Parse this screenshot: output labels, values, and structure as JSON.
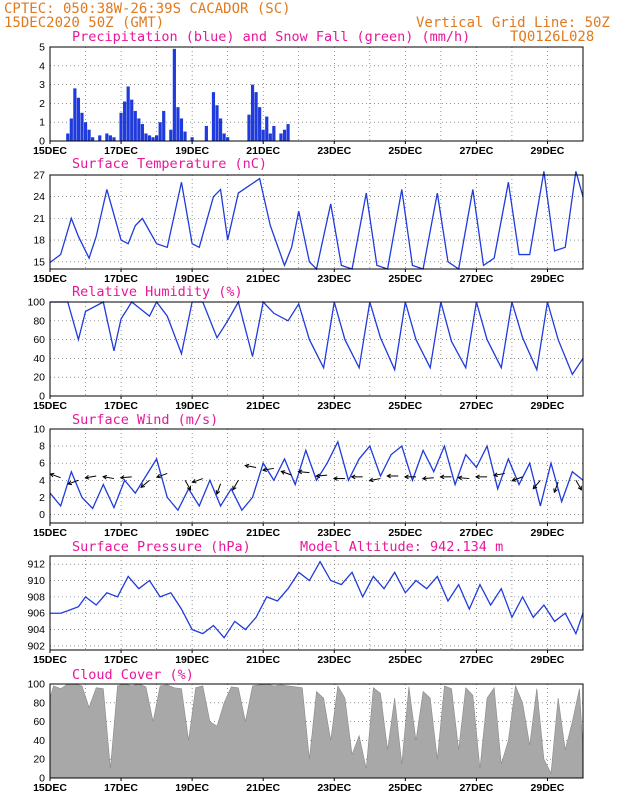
{
  "header": {
    "line1": "CPTEC:  050:38W-26:39S  CACADOR (SC)",
    "line2_left": "15DEC2020 50Z (GMT)",
    "line2_right": "Vertical Grid Line: 50Z",
    "line3_right": "TQ0126L028"
  },
  "colors": {
    "header": "#e07a1f",
    "title": "#e8179b",
    "line": "#1f3bdc",
    "precip": "#1f3bdc",
    "snow": "#22aa22",
    "cloud": "#a8a8a8",
    "grid": "#555555"
  },
  "chart_data": [
    {
      "type": "bar",
      "title": "Precipitation (blue) and Snow Fall (green) (mm/h)",
      "x_ticks": [
        "15DEC",
        "17DEC",
        "19DEC",
        "21DEC",
        "23DEC",
        "25DEC",
        "27DEC",
        "29DEC"
      ],
      "xlim_days": [
        15,
        30
      ],
      "ylim": [
        0,
        5
      ],
      "y_ticks": [
        0,
        1,
        2,
        3,
        4,
        5
      ],
      "grid": true,
      "series": [
        {
          "name": "Precipitation",
          "color": "#1f3bdc",
          "x": [
            15.5,
            15.6,
            15.7,
            15.8,
            15.9,
            16.0,
            16.1,
            16.2,
            16.4,
            16.6,
            16.7,
            16.8,
            17.0,
            17.1,
            17.2,
            17.3,
            17.4,
            17.5,
            17.6,
            17.7,
            17.8,
            17.9,
            18.0,
            18.1,
            18.2,
            18.4,
            18.5,
            18.6,
            18.7,
            18.8,
            19.0,
            19.4,
            19.6,
            19.7,
            19.8,
            19.9,
            20.0,
            20.6,
            20.7,
            20.8,
            20.9,
            21.0,
            21.1,
            21.2,
            21.3,
            21.5,
            21.6,
            21.7
          ],
          "values": [
            0.4,
            1.2,
            2.8,
            2.3,
            1.5,
            1.0,
            0.6,
            0.2,
            0.3,
            0.4,
            0.3,
            0.2,
            1.5,
            2.1,
            2.9,
            2.2,
            1.6,
            1.2,
            0.9,
            0.4,
            0.3,
            0.2,
            0.3,
            1.0,
            1.6,
            0.6,
            4.9,
            1.8,
            1.2,
            0.5,
            0.2,
            0.8,
            2.6,
            1.9,
            1.2,
            0.4,
            0.2,
            1.4,
            3.0,
            2.6,
            1.8,
            0.6,
            1.3,
            0.4,
            0.8,
            0.4,
            0.6,
            0.9
          ]
        },
        {
          "name": "Snow Fall",
          "color": "#22aa22",
          "x": [],
          "values": []
        }
      ]
    },
    {
      "type": "line",
      "title": "Surface Temperature (nC)",
      "x_ticks": [
        "15DEC",
        "17DEC",
        "19DEC",
        "21DEC",
        "23DEC",
        "25DEC",
        "27DEC",
        "29DEC"
      ],
      "xlim_days": [
        15,
        30
      ],
      "ylim": [
        14,
        27
      ],
      "y_ticks": [
        15,
        18,
        21,
        24,
        27
      ],
      "grid": true,
      "series": [
        {
          "name": "Temperature",
          "x": [
            15.0,
            15.3,
            15.6,
            15.8,
            16.0,
            16.1,
            16.3,
            16.6,
            17.0,
            17.2,
            17.4,
            17.6,
            18.0,
            18.3,
            18.7,
            19.0,
            19.2,
            19.6,
            19.8,
            20.0,
            20.3,
            20.6,
            20.9,
            21.2,
            21.6,
            21.8,
            22.0,
            22.3,
            22.5,
            22.9,
            23.2,
            23.5,
            23.9,
            24.2,
            24.5,
            24.9,
            25.2,
            25.5,
            25.9,
            26.2,
            26.5,
            26.9,
            27.2,
            27.5,
            27.9,
            28.2,
            28.5,
            28.9,
            29.2,
            29.5,
            29.8,
            30.0
          ],
          "values": [
            14.9,
            16.0,
            21.0,
            18.5,
            16.5,
            15.5,
            18.5,
            25.0,
            18.0,
            17.5,
            20.0,
            21.0,
            17.5,
            17.0,
            26.0,
            17.5,
            17.0,
            24.0,
            25.0,
            18.0,
            24.5,
            25.5,
            26.5,
            20.0,
            14.5,
            17.0,
            22.0,
            15.0,
            14.0,
            23.0,
            14.5,
            14.0,
            24.5,
            14.5,
            14.0,
            25.0,
            14.5,
            14.0,
            24.5,
            15.0,
            14.0,
            25.0,
            14.5,
            15.5,
            26.0,
            16.0,
            16.0,
            27.5,
            16.5,
            17.0,
            27.5,
            24.0
          ]
        }
      ]
    },
    {
      "type": "line",
      "title": "Relative Humidity (%)",
      "x_ticks": [
        "15DEC",
        "17DEC",
        "19DEC",
        "21DEC",
        "23DEC",
        "25DEC",
        "27DEC",
        "29DEC"
      ],
      "xlim_days": [
        15,
        30
      ],
      "ylim": [
        0,
        100
      ],
      "y_ticks": [
        0,
        20,
        40,
        60,
        80,
        100
      ],
      "grid": true,
      "series": [
        {
          "name": "Relative Humidity",
          "x": [
            15.0,
            15.3,
            15.5,
            15.8,
            16.0,
            16.5,
            16.8,
            17.0,
            17.3,
            17.8,
            18.0,
            18.3,
            18.7,
            19.0,
            19.3,
            19.7,
            20.0,
            20.3,
            20.7,
            21.0,
            21.3,
            21.7,
            22.0,
            22.3,
            22.7,
            23.0,
            23.3,
            23.7,
            24.0,
            24.3,
            24.7,
            25.0,
            25.3,
            25.7,
            26.0,
            26.3,
            26.7,
            27.0,
            27.3,
            27.7,
            28.0,
            28.3,
            28.7,
            29.0,
            29.3,
            29.7,
            30.0
          ],
          "values": [
            100,
            100,
            100,
            60,
            90,
            100,
            48,
            82,
            100,
            85,
            100,
            85,
            45,
            100,
            100,
            62,
            80,
            100,
            42,
            100,
            88,
            80,
            98,
            60,
            30,
            100,
            60,
            30,
            100,
            62,
            28,
            100,
            60,
            30,
            100,
            58,
            30,
            100,
            60,
            30,
            100,
            62,
            28,
            100,
            60,
            23,
            40
          ]
        }
      ]
    },
    {
      "type": "line",
      "title": "Surface Wind (m/s)",
      "x_ticks": [
        "15DEC",
        "17DEC",
        "19DEC",
        "21DEC",
        "23DEC",
        "25DEC",
        "27DEC",
        "29DEC"
      ],
      "xlim_days": [
        15,
        30
      ],
      "ylim": [
        -1,
        10
      ],
      "y_ticks": [
        0,
        2,
        4,
        6,
        8,
        10
      ],
      "grid": true,
      "series": [
        {
          "name": "Wind Speed",
          "x": [
            15.0,
            15.3,
            15.6,
            15.9,
            16.2,
            16.5,
            16.8,
            17.1,
            17.4,
            17.7,
            18.0,
            18.3,
            18.6,
            18.9,
            19.2,
            19.5,
            19.8,
            20.1,
            20.4,
            20.7,
            21.0,
            21.3,
            21.6,
            21.9,
            22.2,
            22.5,
            22.8,
            23.1,
            23.4,
            23.7,
            24.0,
            24.3,
            24.6,
            24.9,
            25.2,
            25.5,
            25.8,
            26.1,
            26.4,
            26.7,
            27.0,
            27.3,
            27.6,
            27.9,
            28.2,
            28.5,
            28.8,
            29.1,
            29.4,
            29.7,
            30.0
          ],
          "values": [
            2.5,
            1.0,
            5.0,
            2.0,
            0.7,
            3.5,
            0.8,
            4.0,
            2.5,
            4.5,
            6.5,
            2.0,
            0.5,
            3.0,
            1.0,
            4.0,
            1.0,
            3.0,
            0.5,
            2.0,
            6.0,
            4.0,
            6.5,
            3.5,
            7.5,
            4.0,
            6.0,
            8.5,
            4.0,
            6.5,
            8.0,
            4.5,
            7.0,
            8.0,
            4.0,
            7.5,
            5.0,
            8.0,
            3.5,
            7.0,
            5.5,
            8.0,
            3.0,
            6.5,
            3.5,
            6.0,
            1.0,
            6.0,
            1.5,
            5.0,
            4.0
          ]
        }
      ],
      "arrows_x_days": [
        15.3,
        15.8,
        16.3,
        16.8,
        17.3,
        17.8,
        18.3,
        18.8,
        19.3,
        19.8,
        20.3,
        20.8,
        21.3,
        21.8,
        22.3,
        22.8,
        23.3,
        23.8,
        24.3,
        24.8,
        25.3,
        25.8,
        26.3,
        26.8,
        27.3,
        27.8,
        28.3,
        28.8,
        29.3,
        29.8
      ],
      "arrows_deg": [
        160,
        200,
        190,
        170,
        185,
        220,
        200,
        300,
        200,
        250,
        240,
        170,
        190,
        160,
        175,
        185,
        180,
        180,
        190,
        180,
        180,
        185,
        180,
        175,
        180,
        190,
        200,
        230,
        250,
        300
      ],
      "arrows_level": [
        4.3,
        4.0,
        4.5,
        4.2,
        4.4,
        4.0,
        4.8,
        4.0,
        4.2,
        3.6,
        4.0,
        5.5,
        5.4,
        4.6,
        4.9,
        4.6,
        4.2,
        4.4,
        4.2,
        4.5,
        4.4,
        4.3,
        4.4,
        4.2,
        4.4,
        4.8,
        4.4,
        4.0,
        3.8,
        4.0
      ]
    },
    {
      "type": "line",
      "title": "Surface Pressure (hPa)",
      "annotation": "Model Altitude: 942.134 m",
      "x_ticks": [
        "15DEC",
        "17DEC",
        "19DEC",
        "21DEC",
        "23DEC",
        "25DEC",
        "27DEC",
        "29DEC"
      ],
      "xlim_days": [
        15,
        30
      ],
      "ylim": [
        901.5,
        913
      ],
      "y_ticks": [
        902,
        904,
        906,
        908,
        910,
        912
      ],
      "grid": true,
      "series": [
        {
          "name": "Pressure",
          "x": [
            15.0,
            15.3,
            15.5,
            15.8,
            16.0,
            16.3,
            16.6,
            16.9,
            17.2,
            17.5,
            17.8,
            18.1,
            18.4,
            18.7,
            19.0,
            19.3,
            19.6,
            19.9,
            20.2,
            20.5,
            20.8,
            21.1,
            21.4,
            21.7,
            22.0,
            22.3,
            22.6,
            22.9,
            23.2,
            23.5,
            23.8,
            24.1,
            24.4,
            24.7,
            25.0,
            25.3,
            25.6,
            25.9,
            26.2,
            26.5,
            26.8,
            27.1,
            27.4,
            27.7,
            28.0,
            28.3,
            28.6,
            28.9,
            29.2,
            29.5,
            29.8,
            30.0
          ],
          "values": [
            906.0,
            906.0,
            906.3,
            906.8,
            908.0,
            907.0,
            908.5,
            908.0,
            910.5,
            909.0,
            910.0,
            908.0,
            908.5,
            906.5,
            904.0,
            903.5,
            904.5,
            903.0,
            905.0,
            904.0,
            905.5,
            908.0,
            907.5,
            909.0,
            911.0,
            910.0,
            912.3,
            910.0,
            909.5,
            911.0,
            908.0,
            910.5,
            909.0,
            911.0,
            908.5,
            910.0,
            909.0,
            910.5,
            907.5,
            909.5,
            906.5,
            909.5,
            907.0,
            909.0,
            905.5,
            908.0,
            905.5,
            907.0,
            905.0,
            906.0,
            903.5,
            906.0
          ]
        }
      ]
    },
    {
      "type": "area",
      "title": "Cloud Cover (%)",
      "x_ticks": [
        "15DEC",
        "17DEC",
        "19DEC",
        "21DEC",
        "23DEC",
        "25DEC",
        "27DEC",
        "29DEC"
      ],
      "xlim_days": [
        15,
        30
      ],
      "ylim": [
        0,
        100
      ],
      "y_ticks": [
        0,
        20,
        40,
        60,
        80,
        100
      ],
      "grid": true,
      "series": [
        {
          "name": "Cloud Cover",
          "x": [
            15.0,
            15.1,
            15.3,
            15.5,
            15.7,
            15.9,
            16.1,
            16.3,
            16.5,
            16.7,
            16.9,
            17.1,
            17.3,
            17.5,
            17.7,
            17.9,
            18.1,
            18.3,
            18.5,
            18.7,
            18.9,
            19.1,
            19.3,
            19.5,
            19.7,
            19.9,
            20.1,
            20.3,
            20.5,
            20.7,
            20.9,
            21.1,
            21.3,
            21.5,
            21.7,
            21.9,
            22.1,
            22.3,
            22.5,
            22.7,
            22.9,
            23.1,
            23.3,
            23.5,
            23.7,
            23.9,
            24.1,
            24.3,
            24.5,
            24.7,
            24.9,
            25.1,
            25.3,
            25.5,
            25.7,
            25.9,
            26.1,
            26.3,
            26.5,
            26.7,
            26.9,
            27.1,
            27.3,
            27.5,
            27.7,
            27.9,
            28.1,
            28.3,
            28.5,
            28.7,
            28.9,
            29.1,
            29.3,
            29.5,
            29.7,
            29.9,
            30.0
          ],
          "values": [
            85,
            98,
            95,
            100,
            100,
            98,
            75,
            96,
            95,
            10,
            98,
            100,
            98,
            100,
            97,
            60,
            98,
            99,
            96,
            95,
            40,
            96,
            98,
            60,
            55,
            80,
            97,
            96,
            60,
            98,
            99,
            100,
            98,
            99,
            98,
            97,
            96,
            20,
            92,
            85,
            40,
            98,
            85,
            25,
            45,
            10,
            96,
            90,
            30,
            85,
            15,
            97,
            40,
            92,
            85,
            20,
            98,
            95,
            30,
            96,
            88,
            10,
            85,
            96,
            15,
            40,
            98,
            80,
            35,
            95,
            20,
            5,
            85,
            30,
            60,
            95,
            30
          ]
        }
      ]
    }
  ]
}
